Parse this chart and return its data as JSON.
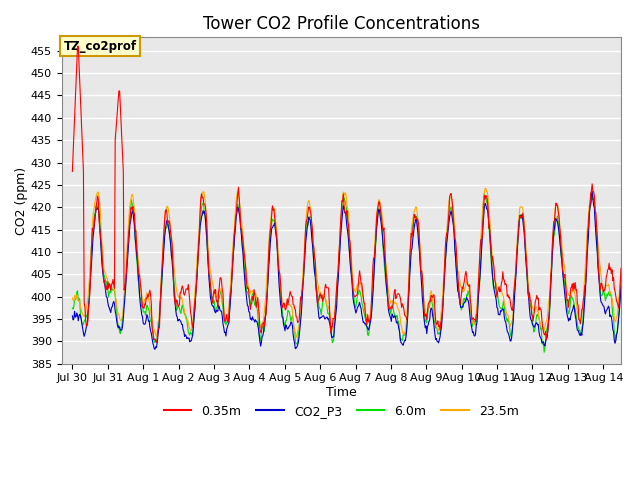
{
  "title": "Tower CO2 Profile Concentrations",
  "xlabel": "Time",
  "ylabel": "CO2 (ppm)",
  "ylim": [
    385,
    458
  ],
  "plot_bg_color": "#e8e8e8",
  "grid_color": "white",
  "series_colors": {
    "0.35m": "#ff0000",
    "CO2_P3": "#0000cc",
    "6.0m": "#00dd00",
    "23.5m": "#ffaa00"
  },
  "annotation_text": "TZ_co2prof",
  "annotation_bg": "#ffffcc",
  "annotation_border": "#cc9900",
  "x_tick_labels": [
    "Jul 30",
    "Jul 31",
    "Aug 1",
    "Aug 2",
    "Aug 3",
    "Aug 4",
    "Aug 5",
    "Aug 6",
    "Aug 7",
    "Aug 8",
    "Aug 9",
    "Aug 10",
    "Aug 11",
    "Aug 12",
    "Aug 13",
    "Aug 14"
  ],
  "line_width": 0.8,
  "title_fontsize": 12,
  "label_fontsize": 9,
  "tick_fontsize": 8
}
